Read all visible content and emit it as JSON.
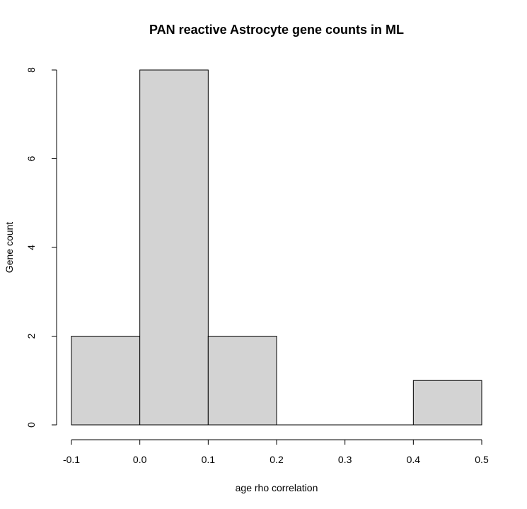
{
  "chart_data": {
    "type": "bar",
    "title": "PAN reactive Astrocyte gene counts in ML",
    "xlabel": "age rho correlation",
    "ylabel": "Gene count",
    "bins": [
      {
        "from": -0.1,
        "to": 0.0,
        "count": 2
      },
      {
        "from": 0.0,
        "to": 0.1,
        "count": 8
      },
      {
        "from": 0.1,
        "to": 0.2,
        "count": 2
      },
      {
        "from": 0.2,
        "to": 0.3,
        "count": 0
      },
      {
        "from": 0.3,
        "to": 0.4,
        "count": 0
      },
      {
        "from": 0.4,
        "to": 0.5,
        "count": 1
      }
    ],
    "xlim": [
      -0.1,
      0.5
    ],
    "ylim": [
      0,
      8
    ],
    "x_ticks": [
      "-0.1",
      "0.0",
      "0.1",
      "0.2",
      "0.3",
      "0.4",
      "0.5"
    ],
    "y_ticks": [
      "0",
      "2",
      "4",
      "6",
      "8"
    ],
    "bar_color": "#d3d3d3",
    "grid": false,
    "legend": "none"
  }
}
